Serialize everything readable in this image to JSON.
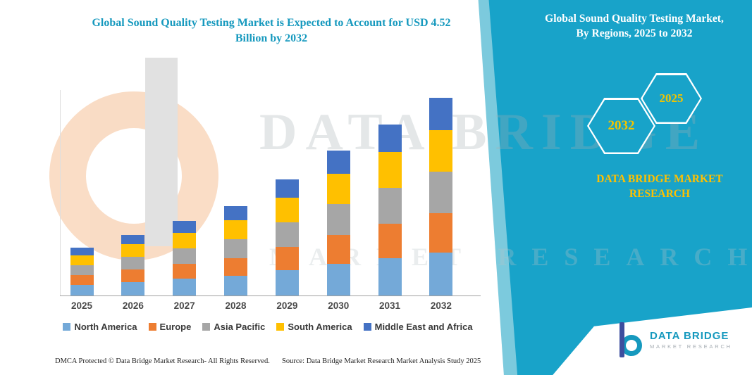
{
  "left_title": {
    "line1": "Global Sound Quality Testing Market is Expected to Account for USD 4.52",
    "line2": "Billion by 2032"
  },
  "right_panel": {
    "bg_color": "#18a3c9",
    "accent_color": "#ffc000",
    "title_line1": "Global Sound Quality Testing Market,",
    "title_line2": "By Regions, 2025 to 2032",
    "hexagons": [
      {
        "year": "2032"
      },
      {
        "year": "2025"
      }
    ],
    "brand_text": "DATA BRIDGE MARKET RESEARCH"
  },
  "watermark": {
    "row1": "DATA BRIDGE",
    "row2": "MARKET RESEARCH"
  },
  "chart_data": {
    "type": "bar",
    "stacked": true,
    "title": "Global Sound Quality Testing Market is Expected to Account for USD 4.52 Billion by 2032",
    "unit": "USD Billion",
    "categories": [
      "2025",
      "2026",
      "2027",
      "2028",
      "2029",
      "2030",
      "2031",
      "2032"
    ],
    "series": [
      {
        "name": "North America",
        "color": "#74A9D8",
        "values": [
          0.24,
          0.31,
          0.38,
          0.45,
          0.58,
          0.73,
          0.86,
          0.99
        ]
      },
      {
        "name": "Europe",
        "color": "#ED7D31",
        "values": [
          0.22,
          0.28,
          0.34,
          0.41,
          0.53,
          0.66,
          0.78,
          0.9
        ]
      },
      {
        "name": "Asia Pacific",
        "color": "#A6A6A6",
        "values": [
          0.23,
          0.29,
          0.36,
          0.43,
          0.56,
          0.7,
          0.82,
          0.95
        ]
      },
      {
        "name": "South America",
        "color": "#FFC000",
        "values": [
          0.23,
          0.29,
          0.36,
          0.43,
          0.56,
          0.7,
          0.82,
          0.95
        ]
      },
      {
        "name": "Middle East and Africa",
        "color": "#4472C4",
        "values": [
          0.17,
          0.22,
          0.27,
          0.32,
          0.42,
          0.52,
          0.63,
          0.73
        ]
      }
    ],
    "totals": [
      1.09,
      1.39,
      1.71,
      2.04,
      2.65,
      3.31,
      3.91,
      4.52
    ],
    "ylim": [
      0,
      4.7
    ],
    "axes_visible": false,
    "grid": false,
    "legend_position": "bottom"
  },
  "footer": {
    "left": "DMCA Protected © Data Bridge Market Research-  All Rights Reserved.",
    "source": "Source: Data Bridge Market Research  Market Analysis Study 2025"
  },
  "logo": {
    "title": "DATA BRIDGE",
    "subtitle": "MARKET RESEARCH"
  }
}
